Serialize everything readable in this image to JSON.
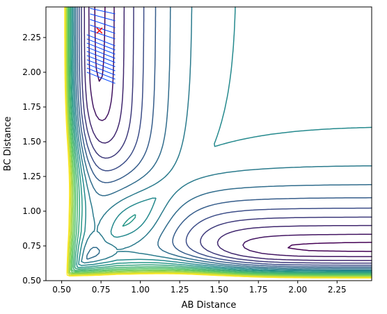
{
  "chart_data": {
    "type": "contour",
    "title": "",
    "xlabel": "AB Distance",
    "ylabel": "BC Distance",
    "xlim": [
      0.4,
      2.47
    ],
    "ylim": [
      0.5,
      2.47
    ],
    "xticks": [
      0.5,
      0.75,
      1.0,
      1.25,
      1.5,
      1.75,
      2.0,
      2.25
    ],
    "xtick_labels": [
      "0.50",
      "0.75",
      "1.00",
      "1.25",
      "1.50",
      "1.75",
      "2.00",
      "2.25"
    ],
    "yticks": [
      0.5,
      0.75,
      1.0,
      1.25,
      1.5,
      1.75,
      2.0,
      2.25
    ],
    "ytick_labels": [
      "0.50",
      "0.75",
      "1.00",
      "1.25",
      "1.50",
      "1.75",
      "2.00",
      "2.25"
    ],
    "grid": false,
    "colormap": [
      "#440154",
      "#3b528b",
      "#21908d",
      "#5dc963",
      "#fde725"
    ],
    "surface": {
      "well_depth": 1.0,
      "equilibrium_distance": 0.74,
      "repulsion_tail": 0.3,
      "sum_offset": 1.75,
      "plateau_start": 0.85
    },
    "levels": [
      -0.98,
      -0.9,
      -0.78,
      -0.66,
      -0.54,
      -0.42,
      -0.3,
      -0.18,
      -0.06,
      0.06,
      0.18,
      0.3,
      0.42,
      0.54,
      0.66,
      0.78,
      0.9,
      1.02
    ],
    "trajectory": {
      "color": "#0044ff",
      "segments": [
        [
          [
            0.66,
            2.0
          ],
          [
            0.84,
            1.92
          ]
        ],
        [
          [
            0.66,
            2.03
          ],
          [
            0.84,
            1.95
          ]
        ],
        [
          [
            0.66,
            2.06
          ],
          [
            0.84,
            1.98
          ]
        ],
        [
          [
            0.66,
            2.09
          ],
          [
            0.84,
            2.01
          ]
        ],
        [
          [
            0.66,
            2.12
          ],
          [
            0.84,
            2.04
          ]
        ],
        [
          [
            0.66,
            2.15
          ],
          [
            0.84,
            2.07
          ]
        ],
        [
          [
            0.66,
            2.18
          ],
          [
            0.84,
            2.1
          ]
        ],
        [
          [
            0.66,
            2.21
          ],
          [
            0.84,
            2.13
          ]
        ],
        [
          [
            0.66,
            2.24
          ],
          [
            0.84,
            2.16
          ]
        ],
        [
          [
            0.66,
            2.27
          ],
          [
            0.84,
            2.19
          ]
        ],
        [
          [
            0.68,
            2.3
          ],
          [
            0.84,
            2.24
          ]
        ],
        [
          [
            0.68,
            2.34
          ],
          [
            0.84,
            2.28
          ]
        ],
        [
          [
            0.68,
            2.38
          ],
          [
            0.84,
            2.32
          ]
        ],
        [
          [
            0.68,
            2.42
          ],
          [
            0.84,
            2.37
          ]
        ],
        [
          [
            0.68,
            2.46
          ],
          [
            0.84,
            2.42
          ]
        ]
      ]
    },
    "marker": {
      "x": 0.74,
      "y": 2.3,
      "symbol": "x",
      "color": "#ff0000"
    }
  }
}
